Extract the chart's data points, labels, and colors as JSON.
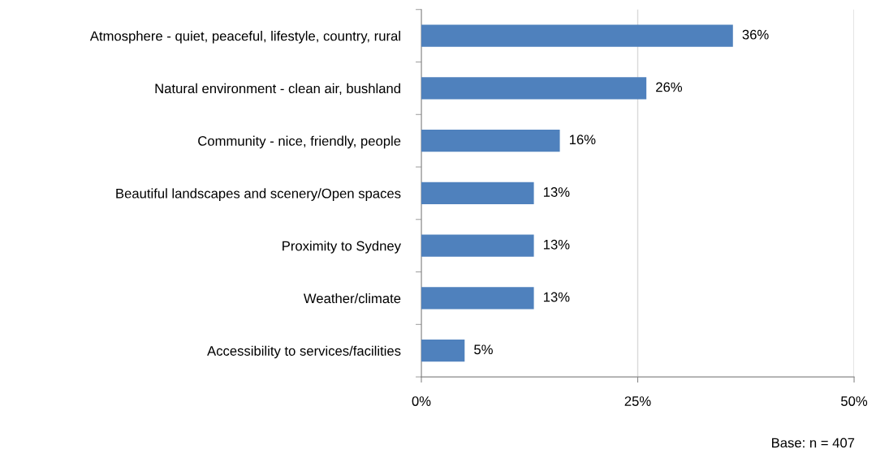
{
  "chart_data": {
    "type": "bar",
    "orientation": "horizontal",
    "categories": [
      "Atmosphere - quiet, peaceful, lifestyle, country, rural",
      "Natural environment - clean air, bushland",
      "Community - nice, friendly, people",
      "Beautiful landscapes and scenery/Open spaces",
      "Proximity to Sydney",
      "Weather/climate",
      "Accessibility to services/facilities"
    ],
    "values": [
      36,
      26,
      16,
      13,
      13,
      13,
      5
    ],
    "value_labels": [
      "36%",
      "26%",
      "16%",
      "13%",
      "13%",
      "13%",
      "5%"
    ],
    "color": "#4f81bd",
    "xlim": [
      0,
      50
    ],
    "xticks": [
      {
        "value": 0,
        "label": "0%"
      },
      {
        "value": 25,
        "label": "25%"
      },
      {
        "value": 50,
        "label": "50%"
      }
    ],
    "grid": "x",
    "legend": false,
    "annotations": [
      "Base: n = 407"
    ]
  }
}
